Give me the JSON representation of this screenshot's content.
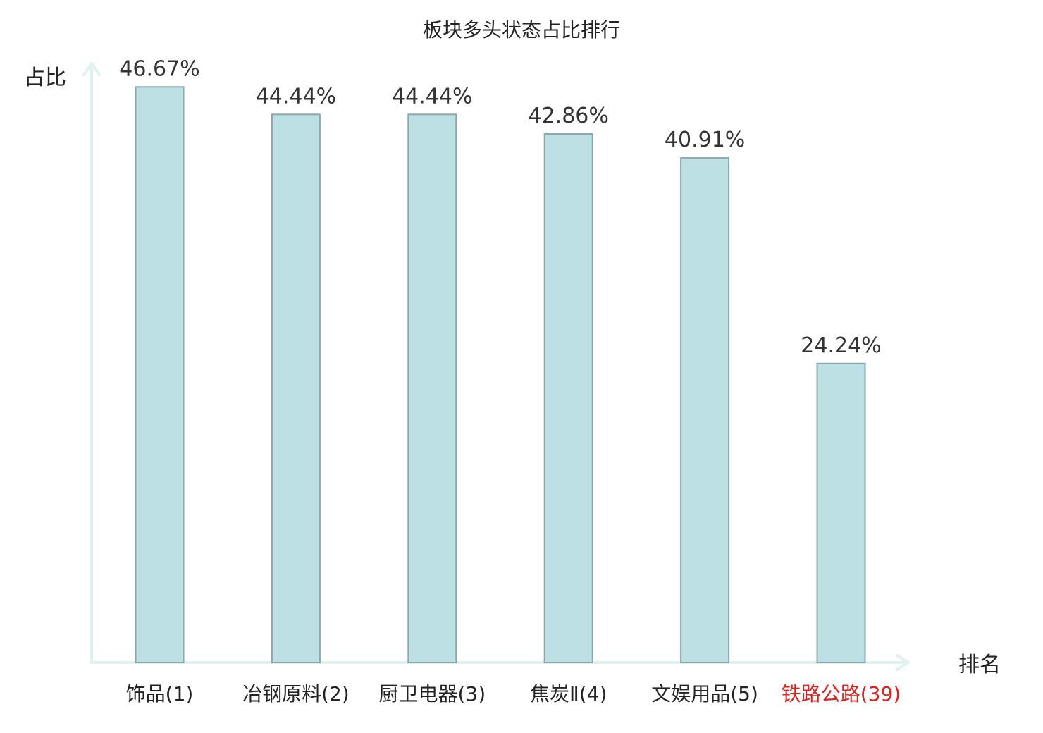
{
  "chart_data": {
    "type": "bar",
    "title": "板块多头状态占比排行",
    "ylabel": "占比",
    "xlabel": "排名",
    "categories": [
      "饰品(1)",
      "冶钢原料(2)",
      "厨卫电器(3)",
      "焦炭Ⅱ(4)",
      "文娱用品(5)",
      "铁路公路(39)"
    ],
    "values": [
      46.67,
      44.44,
      44.44,
      42.86,
      40.91,
      24.24
    ],
    "value_labels": [
      "46.67%",
      "44.44%",
      "44.44%",
      "42.86%",
      "40.91%",
      "24.24%"
    ],
    "highlight_index": 5,
    "ylim": [
      0,
      50
    ],
    "grid": false,
    "colors": {
      "bar_fill": "#bce0e3",
      "bar_stroke": "#8aa8ab",
      "axis": "#dff2ef",
      "highlight_label": "#e0201c",
      "text": "#222222"
    }
  }
}
